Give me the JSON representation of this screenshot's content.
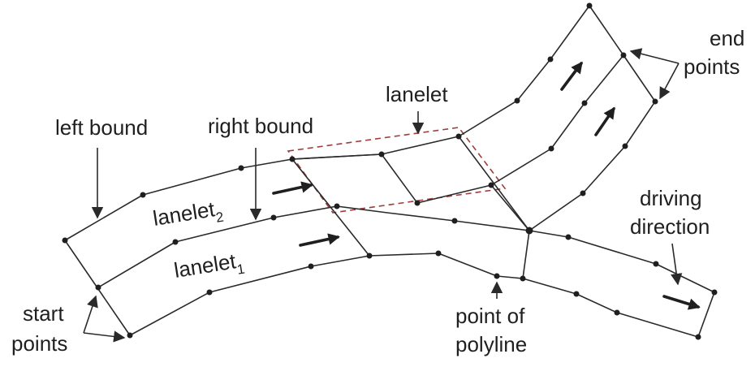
{
  "labels": {
    "left_bound": "left bound",
    "right_bound": "right bound",
    "lanelet": "lanelet",
    "lanelet2_base": "lanelet",
    "lanelet2_sub": "2",
    "lanelet1_base": "lanelet",
    "lanelet1_sub": "1",
    "end_points_line1": "end",
    "end_points_line2": "points",
    "driving_direction_line1": "driving",
    "driving_direction_line2": "direction",
    "start_points_line1": "start",
    "start_points_line2": "points",
    "point_of_polyline_line1": "point of",
    "point_of_polyline_line2": "polyline"
  },
  "colors": {
    "stroke": "#2a2a2a",
    "highlight": "#a23b3b",
    "background": "#ffffff"
  }
}
